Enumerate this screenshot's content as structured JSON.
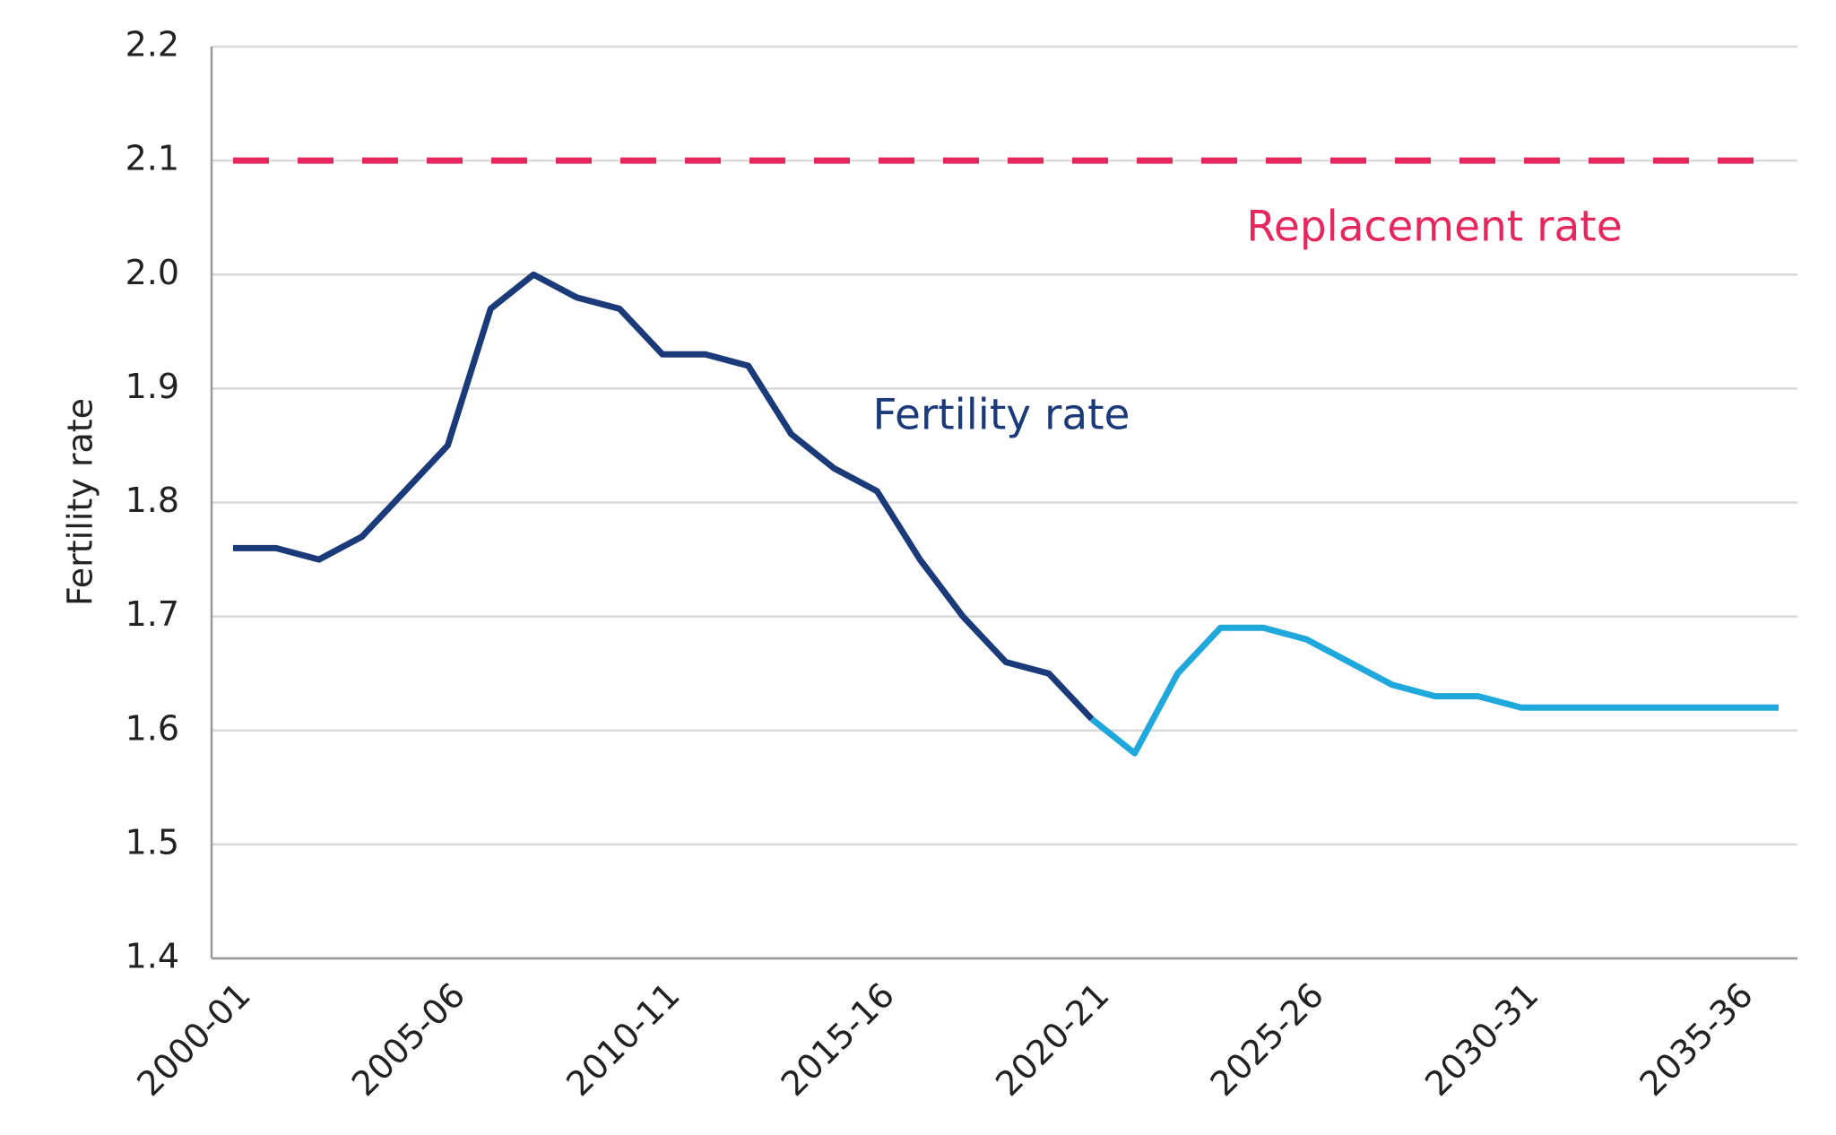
{
  "chart_data": {
    "type": "line",
    "y_label": "Fertility rate",
    "categories": [
      "2000-01",
      null,
      null,
      null,
      null,
      "2005-06",
      null,
      null,
      null,
      null,
      "2010-11",
      null,
      null,
      null,
      null,
      "2015-16",
      null,
      null,
      null,
      null,
      "2020-21",
      null,
      null,
      null,
      null,
      "2025-26",
      null,
      null,
      null,
      null,
      "2030-31",
      null,
      null,
      null,
      null,
      "2035-36",
      null
    ],
    "series": [
      {
        "name": "Fertility rate",
        "color": "#1b3a7a",
        "values": [
          1.76,
          1.76,
          1.75,
          1.77,
          1.81,
          1.85,
          1.97,
          2.0,
          1.98,
          1.97,
          1.93,
          1.93,
          1.92,
          1.86,
          1.83,
          1.81,
          1.75,
          1.7,
          1.66,
          1.65,
          1.61,
          null,
          null,
          null,
          null,
          null,
          null,
          null,
          null,
          null,
          null,
          null,
          null,
          null,
          null,
          null,
          null
        ]
      },
      {
        "color": "#1fa8dc",
        "values": [
          null,
          null,
          null,
          null,
          null,
          null,
          null,
          null,
          null,
          null,
          null,
          null,
          null,
          null,
          null,
          null,
          null,
          null,
          null,
          null,
          1.61,
          1.58,
          1.65,
          1.69,
          1.69,
          1.68,
          1.66,
          1.64,
          1.63,
          1.63,
          1.62,
          1.62,
          1.62,
          1.62,
          1.62,
          1.62,
          1.62
        ]
      }
    ],
    "reference_lines": [
      {
        "value": 2.1,
        "label": "Replacement rate",
        "color": "#e8265e",
        "dashed": true
      }
    ],
    "ylim": [
      1.4,
      2.2
    ],
    "yticks": [
      1.4,
      1.5,
      1.6,
      1.7,
      1.8,
      1.9,
      {
        "value": 2,
        "label": "2.0"
      },
      2.1,
      2.2
    ],
    "grid": true
  }
}
